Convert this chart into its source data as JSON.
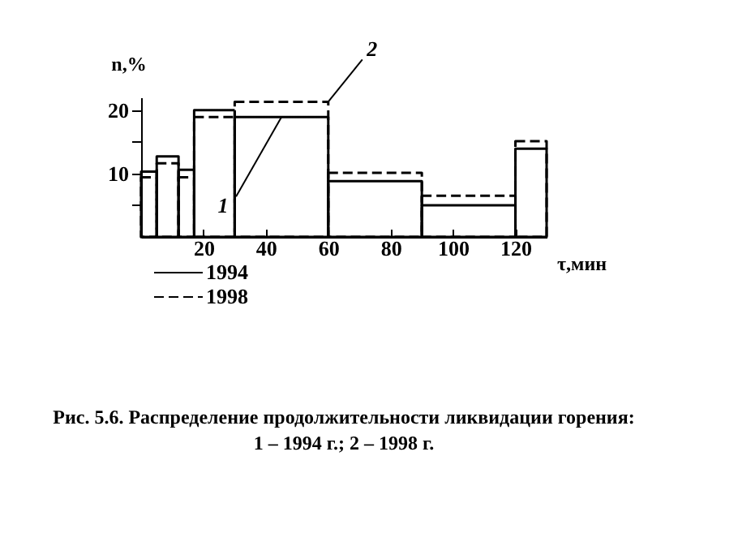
{
  "chart_data": {
    "type": "histogram",
    "title": "Рис. 5.6. Распределение продолжительности ликвидации горения:",
    "subtitle": "1 – 1994 г.; 2 – 1998 г.",
    "xlabel": "τ,мин",
    "ylabel": "n,%",
    "bins": [
      0,
      5,
      12,
      17,
      30,
      60,
      90,
      120,
      130
    ],
    "series": [
      {
        "name": "1994",
        "color": "#000000",
        "line_style": "solid",
        "values": [
          10.3,
          12.7,
          10.6,
          20,
          18.9,
          8.8,
          5,
          13.9
        ]
      },
      {
        "name": "1998",
        "color": "#000000",
        "line_style": "dashed",
        "values": [
          9.4,
          11.6,
          9.4,
          18.9,
          21.3,
          10.1,
          6.5,
          15.1
        ]
      }
    ],
    "xlim": [
      0,
      130
    ],
    "xticks": [
      20,
      40,
      60,
      80,
      100,
      120
    ],
    "ylim": [
      0,
      22
    ],
    "yticks": [
      {
        "value": 5,
        "label": null
      },
      10,
      {
        "value": 15,
        "label": null
      },
      20
    ],
    "annotations": [
      {
        "text": "1",
        "x": 45,
        "y": 18.9
      },
      {
        "text": "2",
        "x": 60,
        "y": 21.3
      }
    ],
    "grid": false,
    "legend": "bottom left"
  }
}
